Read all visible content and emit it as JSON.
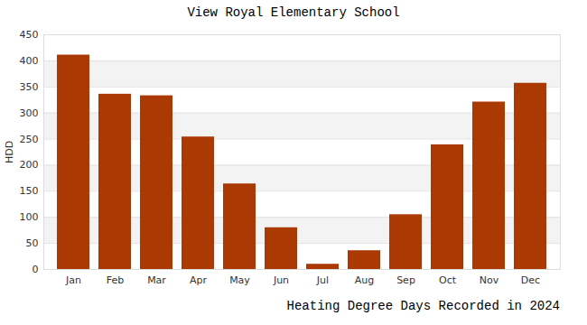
{
  "chart_data": {
    "type": "bar",
    "title": "View Royal Elementary School",
    "x_label": "Heating Degree Days Recorded in 2024",
    "y_label": "HDD",
    "categories": [
      "Jan",
      "Feb",
      "Mar",
      "Apr",
      "May",
      "Jun",
      "Jul",
      "Aug",
      "Sep",
      "Oct",
      "Nov",
      "Dec"
    ],
    "values": [
      411,
      336,
      333,
      254,
      164,
      80,
      10,
      36,
      105,
      239,
      321,
      357
    ],
    "color": "#ab3903",
    "ylim": [
      0,
      450
    ],
    "yticks": [
      0,
      50,
      100,
      150,
      200,
      250,
      300,
      350,
      400,
      450
    ],
    "grid": true
  }
}
